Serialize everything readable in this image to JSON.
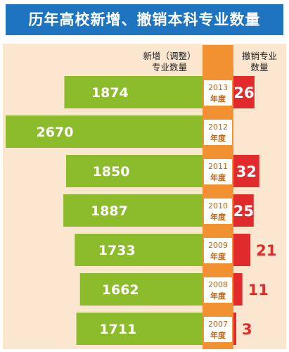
{
  "title": "历年高校新增、撤销本科专业数量",
  "headers": {
    "added_line1": "新增（调整）",
    "added_line2": "专业数量",
    "removed_line1": "撤销专业",
    "removed_line2": "数量"
  },
  "colors": {
    "title_bg": "#1f74bf",
    "panel_bg": "#fbe6cf",
    "added_bar": "#8cbb2c",
    "removed_bar": "#e02a2b",
    "center_column": "#f29131",
    "removed_value_text": "#e02a2b"
  },
  "chart_data": {
    "type": "bar",
    "layout": "butterfly",
    "categories": [
      "2013年度",
      "2012年度",
      "2011年度",
      "2010年度",
      "2009年度",
      "2008年度",
      "2007年度"
    ],
    "years": [
      "2013",
      "2012",
      "2011",
      "2010",
      "2009",
      "2008",
      "2007"
    ],
    "year_suffix": "年度",
    "series": [
      {
        "name": "新增（调整）专业数量",
        "values": [
          1874,
          2670,
          1850,
          1887,
          1733,
          1662,
          1711
        ]
      },
      {
        "name": "撤销专业数量",
        "values": [
          26,
          null,
          32,
          25,
          21,
          11,
          3
        ]
      }
    ]
  }
}
